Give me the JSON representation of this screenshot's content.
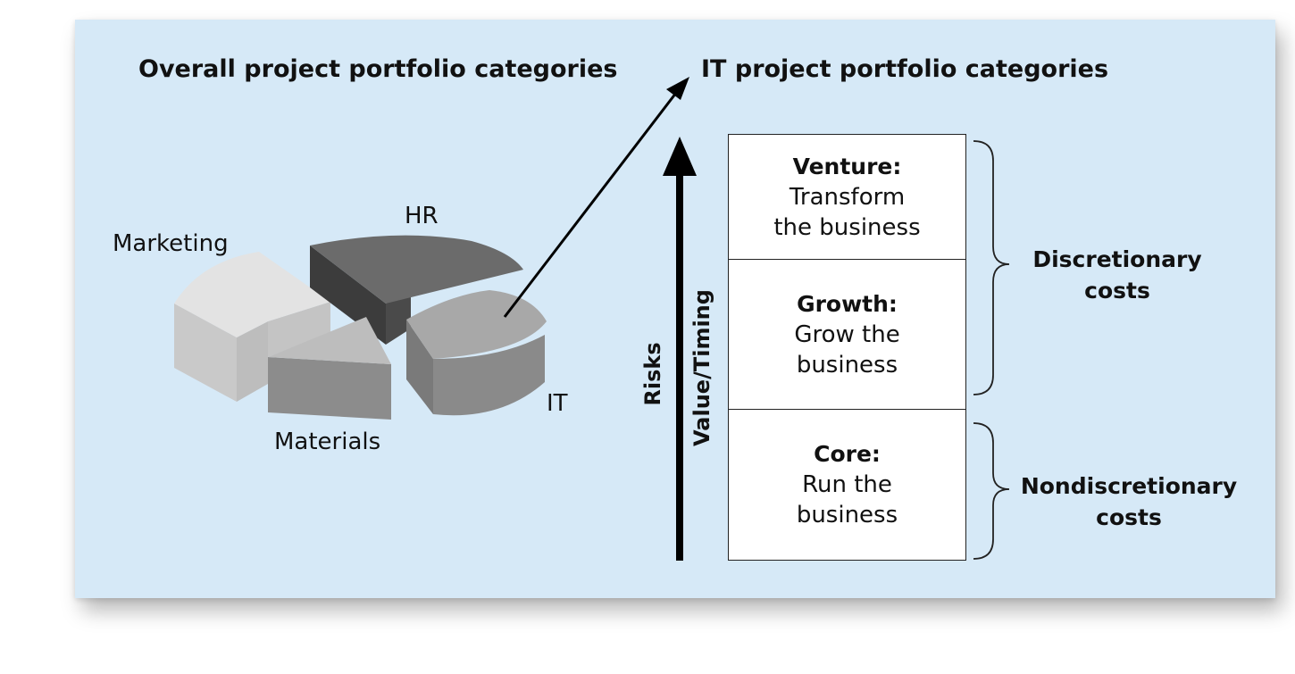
{
  "overall_title": "Overall project portfolio categories",
  "it_title": "IT project portfolio categories",
  "pie_labels": {
    "hr": "HR",
    "marketing": "Marketing",
    "materials": "Materials",
    "it": "IT"
  },
  "axis_labels": {
    "risks": "Risks",
    "value_timing": "Value/Timing"
  },
  "categories": [
    {
      "title": "Venture:",
      "desc": "Transform\nthe business"
    },
    {
      "title": "Growth:",
      "desc": "Grow the\nbusiness"
    },
    {
      "title": "Core:",
      "desc": "Run the\nbusiness"
    }
  ],
  "costs": {
    "discretionary": "Discretionary\ncosts",
    "nondiscretionary": "Nondiscretionary\ncosts"
  }
}
